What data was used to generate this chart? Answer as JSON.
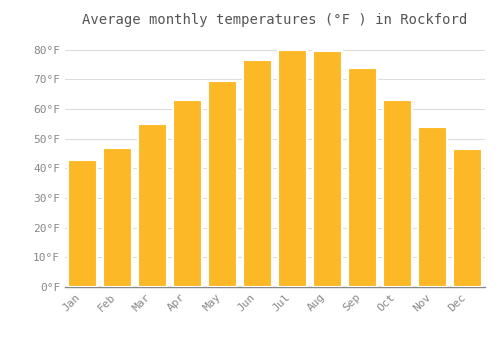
{
  "title": "Average monthly temperatures (°F ) in Rockford",
  "months": [
    "Jan",
    "Feb",
    "Mar",
    "Apr",
    "May",
    "Jun",
    "Jul",
    "Aug",
    "Sep",
    "Oct",
    "Nov",
    "Dec"
  ],
  "values": [
    43,
    47,
    55,
    63,
    69.5,
    76.5,
    80,
    79.5,
    74,
    63,
    54,
    46.5
  ],
  "bar_color": "#FDB827",
  "bar_edge_color": "#FFFFFF",
  "background_color": "#FFFFFF",
  "plot_bg_color": "#FFFFFF",
  "grid_color": "#DDDDDD",
  "title_fontsize": 10,
  "tick_label_fontsize": 8,
  "ylim": [
    0,
    85
  ],
  "yticks": [
    0,
    10,
    20,
    30,
    40,
    50,
    60,
    70,
    80
  ],
  "ytick_labels": [
    "0°F",
    "10°F",
    "20°F",
    "30°F",
    "40°F",
    "50°F",
    "60°F",
    "70°F",
    "80°F"
  ],
  "title_color": "#555555",
  "tick_color": "#888888"
}
